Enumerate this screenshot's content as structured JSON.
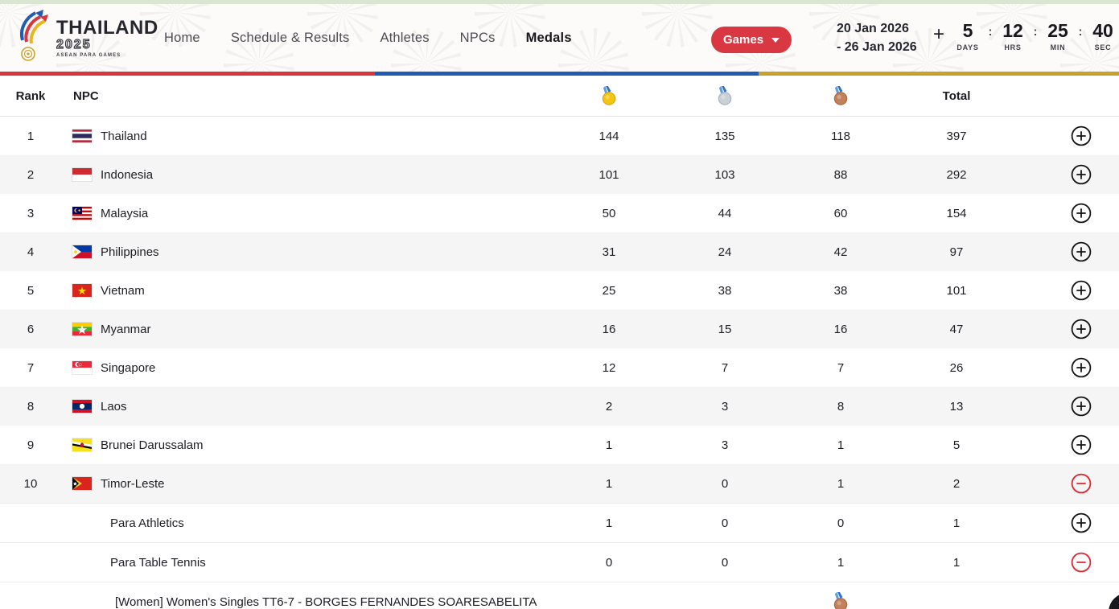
{
  "header": {
    "logo": {
      "title": "THAILAND",
      "year": "2025",
      "subtitle": "ASEAN PARA GAMES"
    },
    "nav": [
      {
        "label": "Home",
        "active": false
      },
      {
        "label": "Schedule & Results",
        "active": false
      },
      {
        "label": "Athletes",
        "active": false
      },
      {
        "label": "NPCs",
        "active": false
      },
      {
        "label": "Medals",
        "active": true
      }
    ],
    "games_button": {
      "label": "Games"
    },
    "date_range": {
      "line1": "20 Jan 2026",
      "line2": "- 26 Jan 2026"
    },
    "countdown": {
      "plus": "+",
      "separator": ":",
      "units": [
        {
          "value": "5",
          "label": "DAYS"
        },
        {
          "value": "12",
          "label": "HRS"
        },
        {
          "value": "25",
          "label": "MIN"
        },
        {
          "value": "40",
          "label": "SEC"
        }
      ]
    }
  },
  "medal_table": {
    "headers": {
      "rank": "Rank",
      "npc": "NPC",
      "total": "Total"
    },
    "medal_columns": [
      "gold-medal",
      "silver-medal",
      "bronze-medal"
    ],
    "rows": [
      {
        "type": "npc",
        "rank": "1",
        "flag": "th",
        "npc": "Thailand",
        "gold": "144",
        "silver": "135",
        "bronze": "118",
        "total": "397",
        "expand": "plus"
      },
      {
        "type": "npc",
        "rank": "2",
        "flag": "id",
        "npc": "Indonesia",
        "gold": "101",
        "silver": "103",
        "bronze": "88",
        "total": "292",
        "expand": "plus"
      },
      {
        "type": "npc",
        "rank": "3",
        "flag": "my",
        "npc": "Malaysia",
        "gold": "50",
        "silver": "44",
        "bronze": "60",
        "total": "154",
        "expand": "plus"
      },
      {
        "type": "npc",
        "rank": "4",
        "flag": "ph",
        "npc": "Philippines",
        "gold": "31",
        "silver": "24",
        "bronze": "42",
        "total": "97",
        "expand": "plus"
      },
      {
        "type": "npc",
        "rank": "5",
        "flag": "vn",
        "npc": "Vietnam",
        "gold": "25",
        "silver": "38",
        "bronze": "38",
        "total": "101",
        "expand": "plus"
      },
      {
        "type": "npc",
        "rank": "6",
        "flag": "mm",
        "npc": "Myanmar",
        "gold": "16",
        "silver": "15",
        "bronze": "16",
        "total": "47",
        "expand": "plus"
      },
      {
        "type": "npc",
        "rank": "7",
        "flag": "sg",
        "npc": "Singapore",
        "gold": "12",
        "silver": "7",
        "bronze": "7",
        "total": "26",
        "expand": "plus"
      },
      {
        "type": "npc",
        "rank": "8",
        "flag": "la",
        "npc": "Laos",
        "gold": "2",
        "silver": "3",
        "bronze": "8",
        "total": "13",
        "expand": "plus"
      },
      {
        "type": "npc",
        "rank": "9",
        "flag": "bn",
        "npc": "Brunei Darussalam",
        "gold": "1",
        "silver": "3",
        "bronze": "1",
        "total": "5",
        "expand": "plus"
      },
      {
        "type": "npc",
        "rank": "10",
        "flag": "tl",
        "npc": "Timor-Leste",
        "gold": "1",
        "silver": "0",
        "bronze": "1",
        "total": "2",
        "expand": "minus"
      },
      {
        "type": "sport",
        "rank": "",
        "npc": "Para Athletics",
        "gold": "1",
        "silver": "0",
        "bronze": "0",
        "total": "1",
        "expand": "plus"
      },
      {
        "type": "sport",
        "rank": "",
        "npc": "Para Table Tennis",
        "gold": "0",
        "silver": "0",
        "bronze": "1",
        "total": "1",
        "expand": "minus"
      },
      {
        "type": "event",
        "rank": "",
        "npc": "[Women] Women's Singles TT6-7 - BORGES FERNANDES SOARESABELITA",
        "medal": "bronze"
      }
    ]
  },
  "colors": {
    "accent_red": "#d93842",
    "bar_red": "#d8353f",
    "bar_blue": "#1f5cb4",
    "bar_gold": "#c8a02c",
    "top_strip_green": "#d9e7d2",
    "row_alt": "#f5f5f5",
    "gold_medal": "#f3c613",
    "silver_medal": "#c9d0d6",
    "bronze_medal": "#c3815b"
  }
}
